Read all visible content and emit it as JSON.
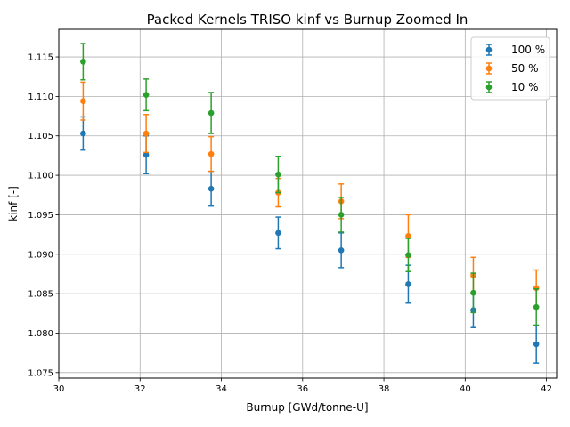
{
  "chart_data": {
    "type": "scatter",
    "title": "Packed Kernels TRISO kinf vs Burnup Zoomed In",
    "xlabel": "Burnup [GWd/tonne-U]",
    "ylabel": "kinf [-]",
    "xlim": [
      30.0,
      42.25
    ],
    "ylim": [
      1.0743,
      1.1185
    ],
    "xticks": [
      30,
      32,
      34,
      36,
      38,
      40,
      42
    ],
    "yticks": [
      1.075,
      1.08,
      1.085,
      1.09,
      1.095,
      1.1,
      1.105,
      1.11,
      1.115
    ],
    "xtick_labels": [
      "30",
      "32",
      "34",
      "36",
      "38",
      "40",
      "42"
    ],
    "ytick_labels": [
      "1.075",
      "1.080",
      "1.085",
      "1.090",
      "1.095",
      "1.100",
      "1.105",
      "1.110",
      "1.115"
    ],
    "grid": true,
    "legend_position": "top-right",
    "series": [
      {
        "name": "100 %",
        "color": "#1f77b4",
        "x": [
          30.6,
          32.15,
          33.75,
          35.4,
          36.95,
          38.6,
          40.2,
          41.75
        ],
        "y": [
          1.1053,
          1.1026,
          1.0983,
          1.0927,
          1.0905,
          1.0862,
          1.0829,
          1.0786
        ],
        "err": [
          0.0021,
          0.0024,
          0.0022,
          0.002,
          0.0022,
          0.0024,
          0.0022,
          0.0024
        ]
      },
      {
        "name": "50 %",
        "color": "#ff7f0e",
        "x": [
          30.6,
          32.15,
          33.75,
          35.4,
          36.95,
          38.6,
          40.2,
          41.75
        ],
        "y": [
          1.1094,
          1.1053,
          1.1027,
          1.0978,
          1.0967,
          1.0923,
          1.0873,
          1.0857
        ],
        "err": [
          0.0024,
          0.0024,
          0.0022,
          0.0018,
          0.0022,
          0.0027,
          0.0023,
          0.0023
        ]
      },
      {
        "name": "10 %",
        "color": "#2ca02c",
        "x": [
          30.6,
          32.15,
          33.75,
          35.4,
          36.95,
          38.6,
          40.2,
          41.75
        ],
        "y": [
          1.1144,
          1.1102,
          1.1079,
          1.1001,
          1.095,
          1.0899,
          1.0851,
          1.0833
        ],
        "err": [
          0.0023,
          0.002,
          0.0026,
          0.0023,
          0.0022,
          0.0021,
          0.0025,
          0.0023
        ]
      }
    ]
  }
}
